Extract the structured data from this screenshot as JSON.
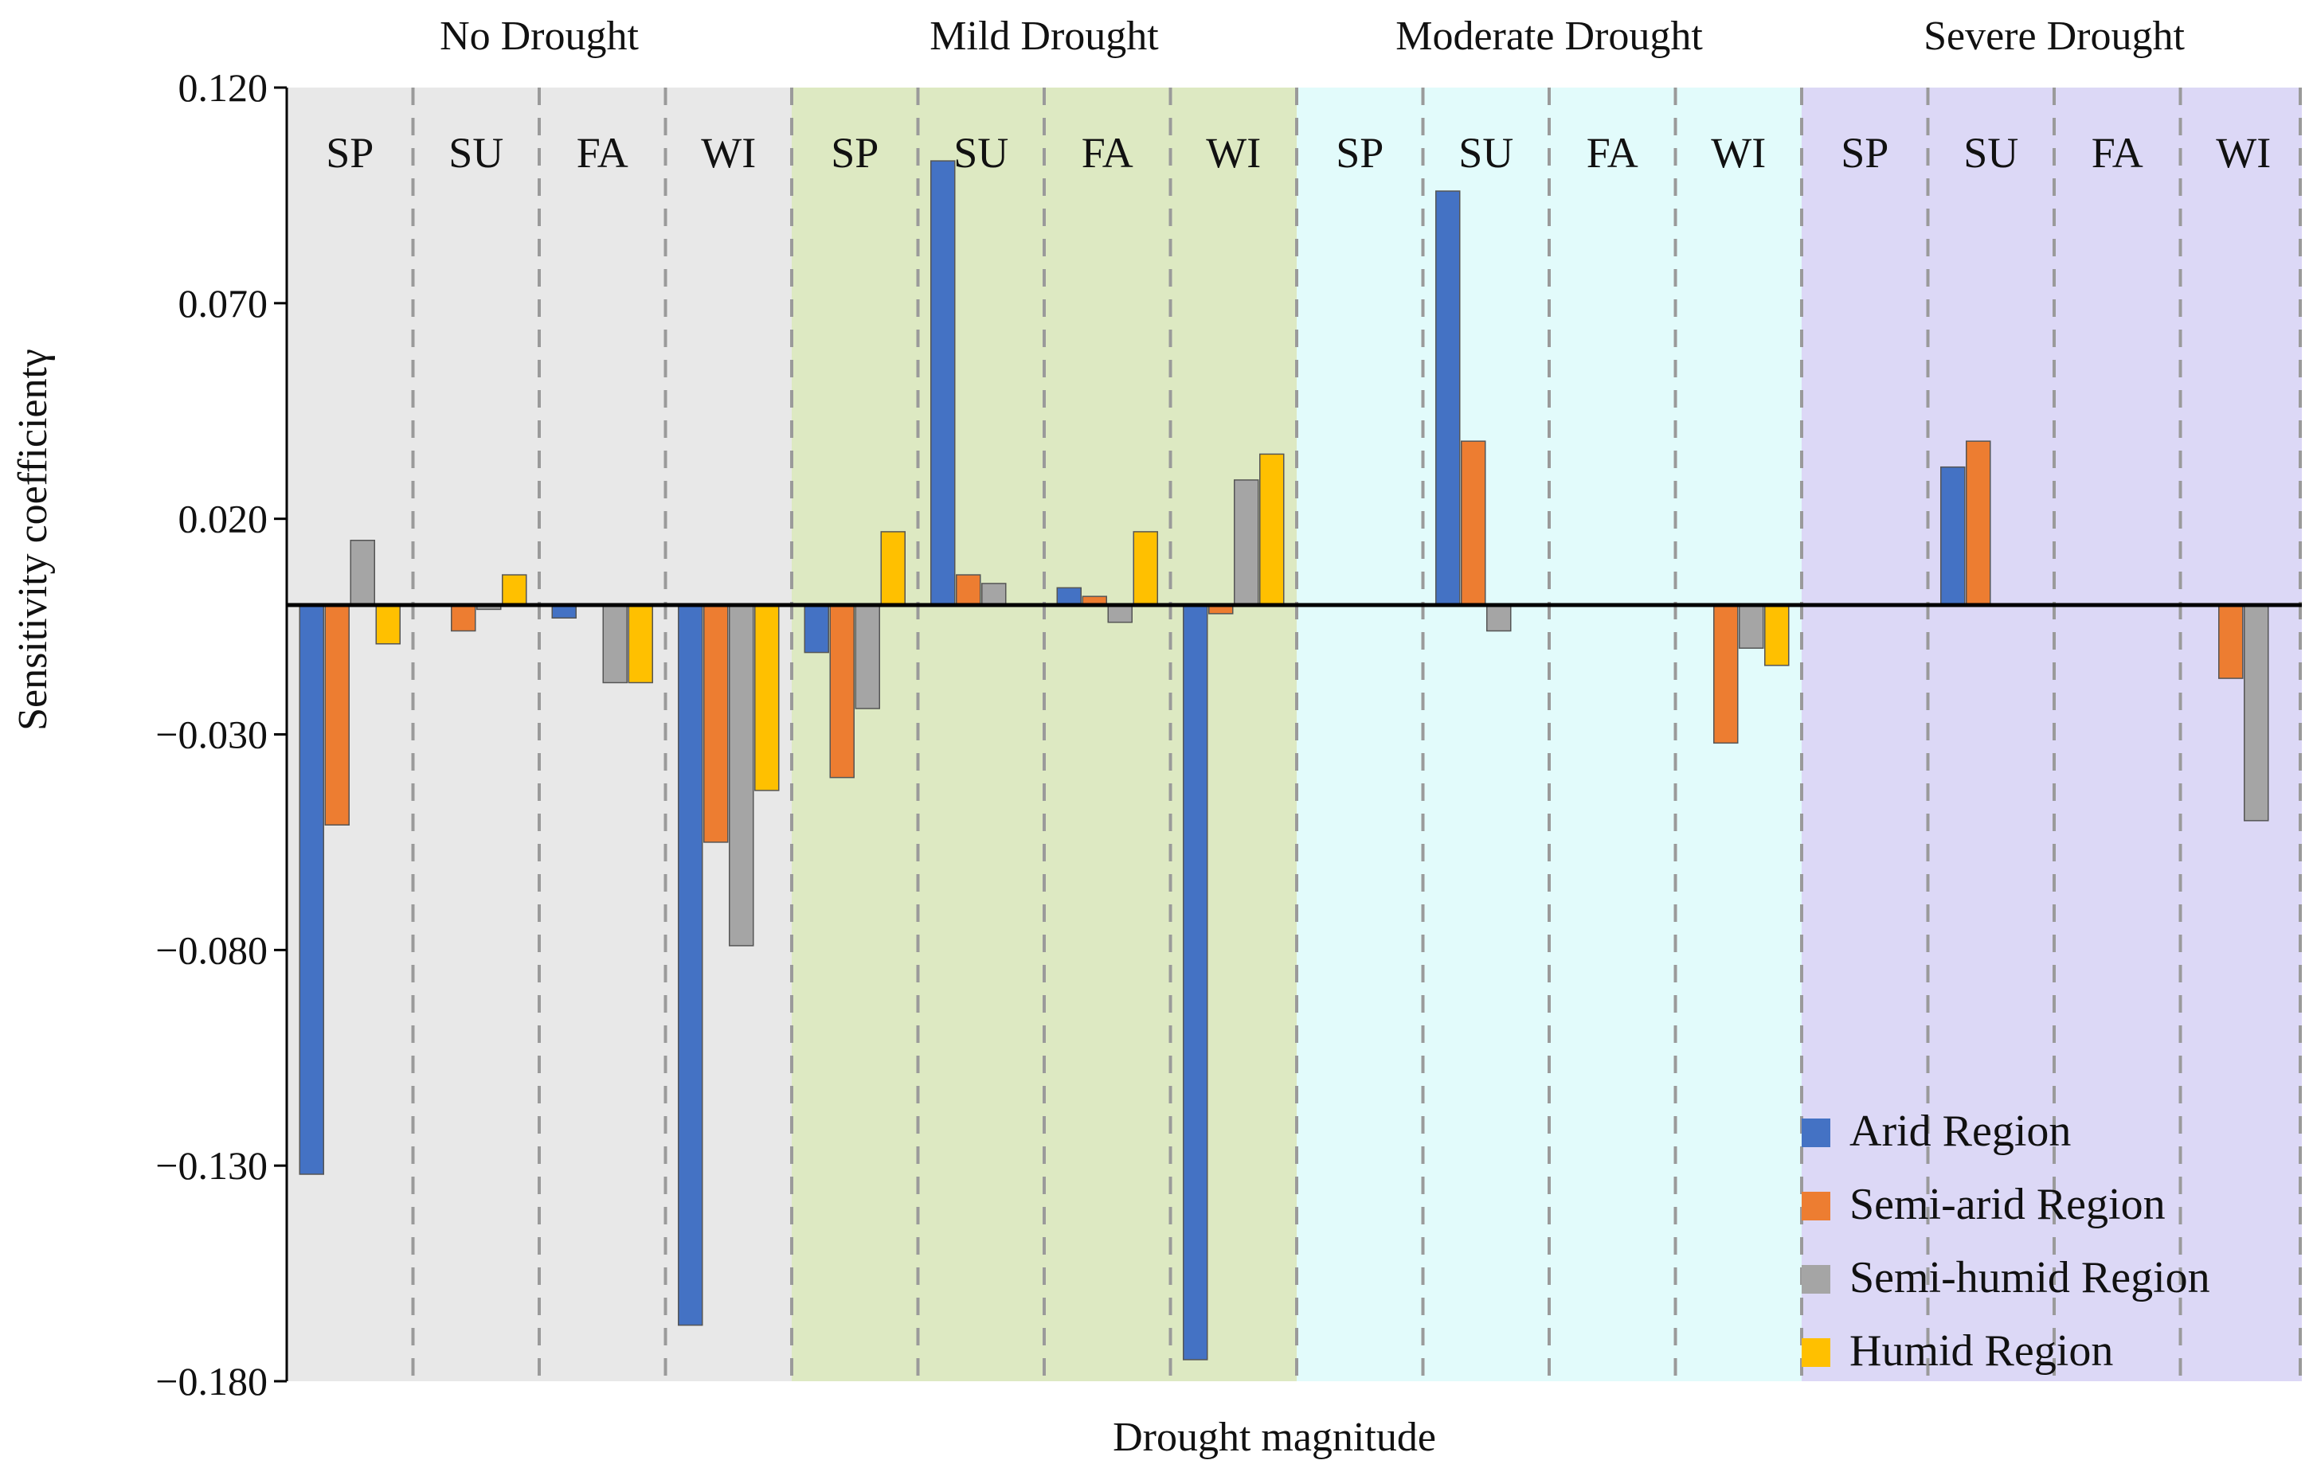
{
  "chart_data": {
    "type": "bar",
    "xlabel": "Drought magnitude",
    "ylabel": "Sensitivity coefficientγ",
    "ylim": [
      -0.18,
      0.12
    ],
    "yticks": [
      "0.120",
      "0.070",
      "0.020",
      "−0.030",
      "−0.080",
      "−0.130",
      "−0.180"
    ],
    "ytick_values": [
      0.12,
      0.07,
      0.02,
      -0.03,
      -0.08,
      -0.13,
      -0.18
    ],
    "legend_position": "bottom-right",
    "groups": [
      {
        "name": "No Drought",
        "color": "#e8e8e8"
      },
      {
        "name": "Mild Drought",
        "color": "#dde9c2"
      },
      {
        "name": "Moderate Drought",
        "color": "#e2fbfb"
      },
      {
        "name": "Severe Drought",
        "color": "#dcd8f6"
      }
    ],
    "seasons": [
      "SP",
      "SU",
      "FA",
      "WI"
    ],
    "series": [
      {
        "name": "Arid Region",
        "color": "#4472c4",
        "values": [
          -0.132,
          0.0,
          -0.003,
          -0.167,
          -0.011,
          0.103,
          0.004,
          -0.175,
          0.0,
          0.096,
          0.0,
          0.0,
          0.0,
          0.032,
          0.0,
          0.0
        ]
      },
      {
        "name": "Semi-arid Region",
        "color": "#ed7d31",
        "values": [
          -0.051,
          -0.006,
          0.0,
          -0.055,
          -0.04,
          0.007,
          0.002,
          -0.002,
          0.0,
          0.038,
          0.0,
          -0.032,
          0.0,
          0.038,
          0.0,
          -0.017
        ]
      },
      {
        "name": "Semi-humid Region",
        "color": "#a5a5a5",
        "values": [
          0.015,
          -0.001,
          -0.018,
          -0.079,
          -0.024,
          0.005,
          -0.004,
          0.029,
          0.0,
          -0.006,
          0.0,
          -0.01,
          0.0,
          0.0,
          0.0,
          -0.05
        ]
      },
      {
        "name": "Humid Region",
        "color": "#ffc000",
        "values": [
          -0.009,
          0.007,
          -0.018,
          -0.043,
          0.017,
          0.0,
          0.017,
          0.035,
          0.0,
          0.0,
          0.0,
          -0.014,
          0.0,
          0.0,
          0.0,
          0.0
        ]
      }
    ]
  }
}
